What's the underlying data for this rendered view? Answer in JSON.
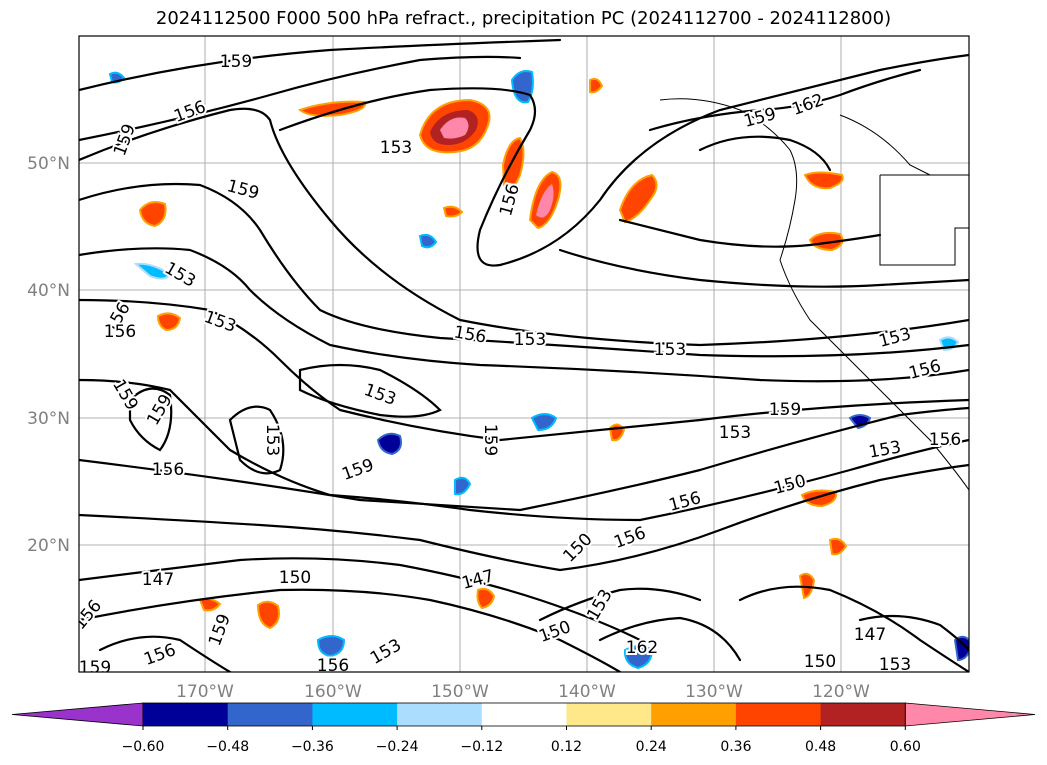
{
  "title": "2024112500 F000 500 hPa refract., precipitation PC (2024112700 - 2024112800)",
  "lat_ticks": [
    "50°N",
    "40°N",
    "30°N",
    "20°N"
  ],
  "lon_ticks": [
    "170°W",
    "160°W",
    "150°W",
    "140°W",
    "130°W",
    "120°W"
  ],
  "colorbar": {
    "levels": [
      "−0.60",
      "−0.48",
      "−0.36",
      "−0.24",
      "−0.12",
      "0.12",
      "0.24",
      "0.36",
      "0.48",
      "0.60"
    ],
    "colors": [
      "#9933cc",
      "#000099",
      "#3366cc",
      "#00bbff",
      "#aaddff",
      "#ffffff",
      "#ffe88a",
      "#ffa000",
      "#ff4400",
      "#b22222",
      "#ff88aa"
    ]
  },
  "contour_labels": [
    "159",
    "156",
    "153",
    "150",
    "147",
    "162"
  ]
}
